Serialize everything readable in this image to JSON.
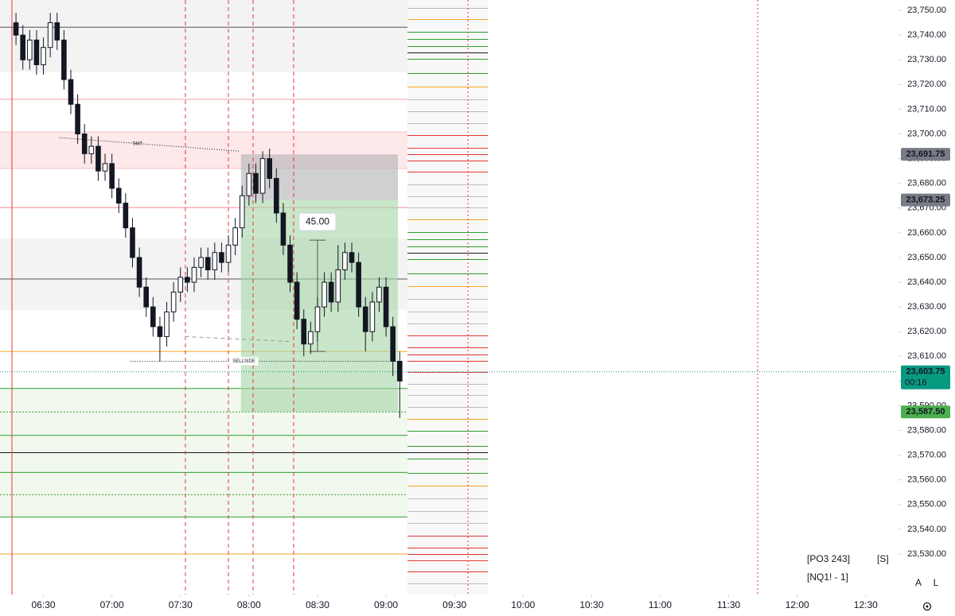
{
  "chart_data": {
    "type": "candlestick",
    "x": [
      378,
      381,
      384,
      387,
      390,
      393,
      396,
      399,
      402,
      405,
      408,
      411,
      414,
      417,
      420,
      423,
      426,
      429,
      432,
      435,
      438,
      441,
      444,
      447,
      450,
      453,
      456,
      459,
      462,
      465,
      468,
      471,
      474,
      477,
      480,
      483,
      486,
      489,
      492,
      495,
      498,
      501,
      504,
      507,
      510,
      513,
      516,
      519,
      522,
      525,
      528,
      531,
      534,
      537,
      540,
      543,
      546
    ],
    "open": [
      23745,
      23740,
      23730,
      23738,
      23728,
      23735,
      23745,
      23738,
      23722,
      23712,
      23700,
      23692,
      23695,
      23685,
      23688,
      23678,
      23672,
      23662,
      23650,
      23638,
      23630,
      23622,
      23618,
      23628,
      23636,
      23642,
      23640,
      23646,
      23650,
      23645,
      23652,
      23648,
      23655,
      23662,
      23675,
      23684,
      23676,
      23690,
      23682,
      23668,
      23655,
      23640,
      23625,
      23615,
      23620,
      23630,
      23640,
      23632,
      23645,
      23652,
      23648,
      23630,
      23620,
      23632,
      23638,
      23622,
      23608
    ],
    "high": [
      23749,
      23744,
      23742,
      23742,
      23739,
      23749,
      23749,
      23742,
      23726,
      23716,
      23704,
      23699,
      23699,
      23692,
      23692,
      23682,
      23676,
      23666,
      23654,
      23642,
      23634,
      23626,
      23632,
      23640,
      23646,
      23646,
      23650,
      23654,
      23654,
      23656,
      23656,
      23659,
      23666,
      23679,
      23688,
      23688,
      23693,
      23694,
      23686,
      23672,
      23659,
      23644,
      23629,
      23624,
      23634,
      23644,
      23644,
      23655,
      23656,
      23656,
      23652,
      23634,
      23636,
      23642,
      23642,
      23626,
      23612
    ],
    "low": [
      23736,
      23726,
      23726,
      23724,
      23724,
      23731,
      23734,
      23718,
      23708,
      23696,
      23688,
      23688,
      23681,
      23681,
      23674,
      23668,
      23658,
      23646,
      23634,
      23626,
      23618,
      23608,
      23614,
      23624,
      23632,
      23636,
      23636,
      23642,
      23641,
      23641,
      23644,
      23644,
      23651,
      23658,
      23671,
      23672,
      23672,
      23678,
      23664,
      23651,
      23636,
      23621,
      23610,
      23611,
      23616,
      23626,
      23628,
      23628,
      23641,
      23644,
      23626,
      23612,
      23616,
      23628,
      23618,
      23602,
      23585
    ],
    "close": [
      23740,
      23730,
      23738,
      23728,
      23735,
      23745,
      23738,
      23722,
      23712,
      23700,
      23692,
      23695,
      23685,
      23688,
      23678,
      23672,
      23662,
      23650,
      23638,
      23630,
      23622,
      23618,
      23628,
      23636,
      23642,
      23640,
      23646,
      23650,
      23645,
      23652,
      23648,
      23655,
      23662,
      23675,
      23684,
      23676,
      23690,
      23682,
      23668,
      23655,
      23640,
      23625,
      23615,
      23620,
      23630,
      23640,
      23632,
      23645,
      23652,
      23648,
      23630,
      23620,
      23632,
      23638,
      23622,
      23608,
      23600
    ],
    "up_color": "#ffffff",
    "down_color": "#131722",
    "xlim": [
      371,
      764
    ],
    "ylim": [
      23513.6,
      23754.2
    ],
    "xticks": [
      {
        "value": 390,
        "label": "06:30"
      },
      {
        "value": 420,
        "label": "07:00"
      },
      {
        "value": 450,
        "label": "07:30"
      },
      {
        "value": 480,
        "label": "08:00"
      },
      {
        "value": 510,
        "label": "08:30"
      },
      {
        "value": 540,
        "label": "09:00"
      },
      {
        "value": 570,
        "label": "09:30"
      },
      {
        "value": 600,
        "label": "10:00"
      },
      {
        "value": 630,
        "label": "10:30"
      },
      {
        "value": 660,
        "label": "11:00"
      },
      {
        "value": 690,
        "label": "11:30"
      },
      {
        "value": 720,
        "label": "12:00"
      },
      {
        "value": 750,
        "label": "12:30"
      }
    ],
    "yticks": [
      {
        "value": 23530,
        "label": "23,530.00"
      },
      {
        "value": 23540,
        "label": "23,540.00"
      },
      {
        "value": 23550,
        "label": "23,550.00"
      },
      {
        "value": 23560,
        "label": "23,560.00"
      },
      {
        "value": 23570,
        "label": "23,570.00"
      },
      {
        "value": 23580,
        "label": "23,580.00"
      },
      {
        "value": 23590,
        "label": "23,590.00"
      },
      {
        "value": 23600,
        "label": "23,600.00"
      },
      {
        "value": 23610,
        "label": "23,610.00"
      },
      {
        "value": 23620,
        "label": "23,620.00"
      },
      {
        "value": 23630,
        "label": "23,630.00"
      },
      {
        "value": 23640,
        "label": "23,640.00"
      },
      {
        "value": 23650,
        "label": "23,650.00"
      },
      {
        "value": 23660,
        "label": "23,660.00"
      },
      {
        "value": 23670,
        "label": "23,670.00"
      },
      {
        "value": 23680,
        "label": "23,680.00"
      },
      {
        "value": 23690,
        "label": "23,690.00"
      },
      {
        "value": 23700,
        "label": "23,700.00"
      },
      {
        "value": 23710,
        "label": "23,710.00"
      },
      {
        "value": 23720,
        "label": "23,720.00"
      },
      {
        "value": 23730,
        "label": "23,730.00"
      },
      {
        "value": 23740,
        "label": "23,740.00"
      },
      {
        "value": 23750,
        "label": "23,750.00"
      }
    ],
    "zones": [
      {
        "from": 23725,
        "to": 23754.2,
        "color": "#f3f3f4"
      },
      {
        "from": 23686,
        "to": 23700.8,
        "color": "#fde8ea"
      },
      {
        "from": 23628.8,
        "to": 23657.7,
        "color": "#f3f3f4"
      },
      {
        "from": 23545,
        "to": 23597,
        "color": "#f1f8ee"
      }
    ],
    "levels": [
      {
        "value": 23743.2,
        "color": "#555555",
        "style": "solid"
      },
      {
        "value": 23714,
        "color": "#f4a3a8",
        "style": "solid"
      },
      {
        "value": 23700.8,
        "color": "#f7c3c7",
        "style": "solid"
      },
      {
        "value": 23686,
        "color": "#f7c3c7",
        "style": "solid"
      },
      {
        "value": 23670.2,
        "color": "#f08a90",
        "style": "solid"
      },
      {
        "value": 23641.3,
        "color": "#555555",
        "style": "solid"
      },
      {
        "value": 23612,
        "color": "#f5a623",
        "style": "solid"
      },
      {
        "value": 23597,
        "color": "#2e9e2e",
        "style": "solid"
      },
      {
        "value": 23587.5,
        "color": "#2e9e2e",
        "style": "dotted"
      },
      {
        "value": 23578,
        "color": "#2e9e2e",
        "style": "solid"
      },
      {
        "value": 23571,
        "color": "#131722",
        "style": "solid"
      },
      {
        "value": 23563,
        "color": "#2e9e2e",
        "style": "solid"
      },
      {
        "value": 23554,
        "color": "#2e9e2e",
        "style": "dotted"
      },
      {
        "value": 23545,
        "color": "#2e9e2e",
        "style": "solid"
      },
      {
        "value": 23530,
        "color": "#f5a623",
        "style": "solid"
      }
    ],
    "position": {
      "start": 476.5,
      "end": 545.2,
      "stop": 23691.75,
      "entry": 23673.25,
      "target": 23587.5,
      "risk_color": "#b0b0b4",
      "reward_color": "#a5d6a7"
    },
    "price_tags": [
      {
        "value": 23691.75,
        "label": "23,691.75",
        "color": "#787b86"
      },
      {
        "value": 23673.25,
        "label": "23,673.25",
        "color": "#787b86"
      },
      {
        "value": 23603.75,
        "label": "23,603.75",
        "color": "#089981",
        "countdown": "00:16"
      },
      {
        "value": 23587.5,
        "label": "23,587.50",
        "color": "#4caf50"
      }
    ],
    "measure": {
      "value": 45,
      "label": "45.00",
      "time": 510,
      "from": 23612,
      "to": 23657
    },
    "annotations": [
      {
        "label": "SMT",
        "start": [
          397,
          23698.5
        ],
        "end": [
          476,
          23693
        ]
      },
      {
        "label": "SELLSIDE",
        "start": [
          428,
          23608
        ],
        "end": [
          545,
          23608
        ]
      }
    ],
    "dashed_ray": {
      "start": [
        452,
        23618
      ],
      "end": [
        498,
        23616
      ]
    },
    "overlay_texts": [
      "[PO3 243]",
      "[S]",
      "[NQ1! - 1]"
    ],
    "buttons": [
      "A",
      "L"
    ]
  }
}
